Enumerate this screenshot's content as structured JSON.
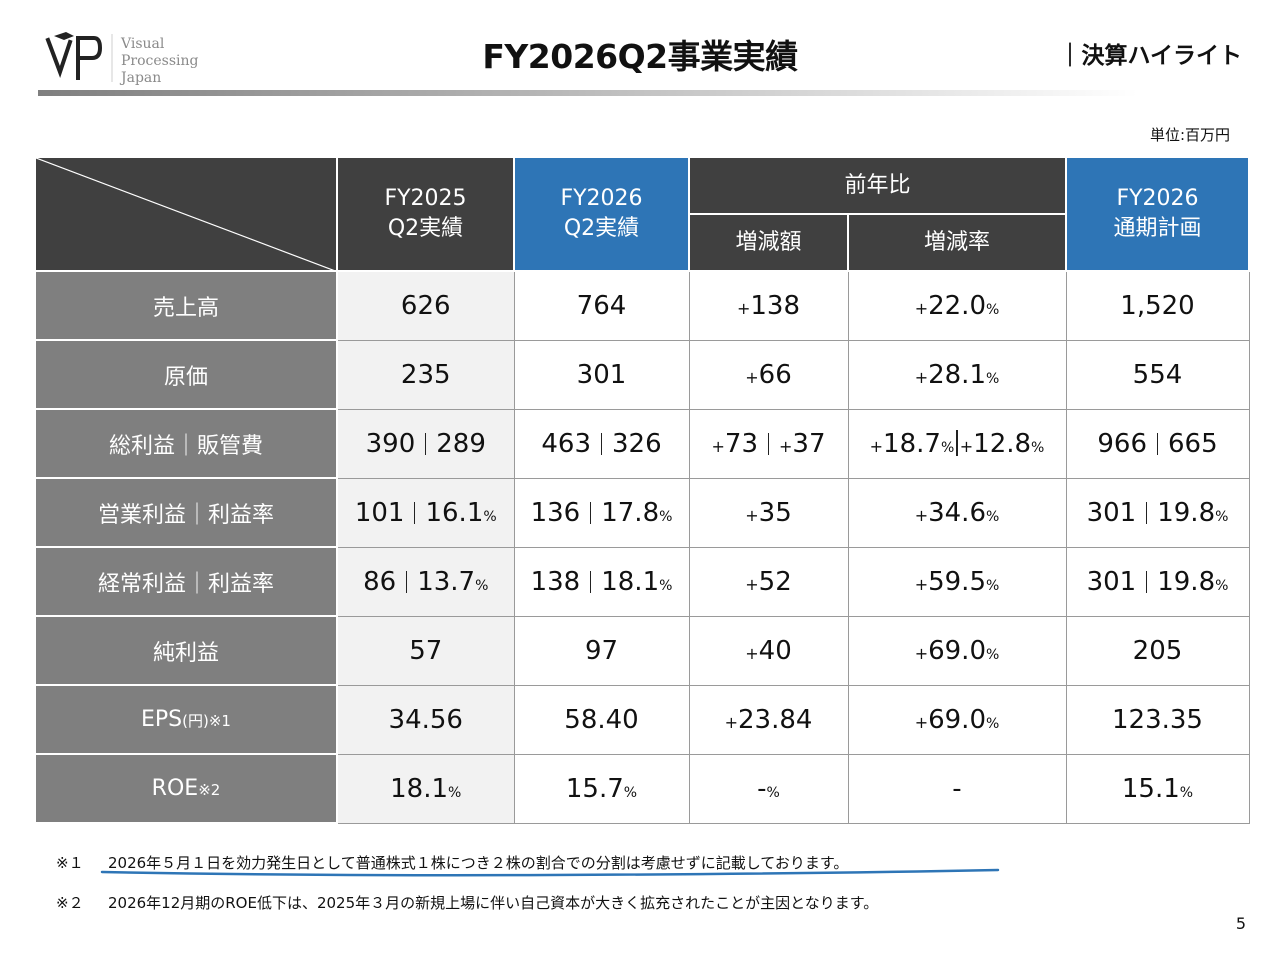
{
  "header": {
    "logo": {
      "mark": "VP",
      "lines": [
        "Visual",
        "Processing",
        "Japan"
      ]
    },
    "title": "FY2026Q2事業実績",
    "section": "｜決算ハイライト"
  },
  "unit": "単位:百万円",
  "table": {
    "columns": {
      "fy2025": "FY2025\nQ2実績",
      "fy2026": "FY2026\nQ2実績",
      "yoy": "前年比",
      "yoy_amount": "増減額",
      "yoy_rate": "増減率",
      "plan": "FY2026\n通期計画"
    },
    "rows": [
      {
        "label": "売上高",
        "fy2025": "626",
        "fy2026": "764",
        "amt": "138",
        "rate": "22.0",
        "plan": "1,520"
      },
      {
        "label": "原価",
        "fy2025": "235",
        "fy2026": "301",
        "amt": "66",
        "rate": "28.1",
        "plan": "554"
      },
      {
        "label": "総利益｜販管費",
        "fy2025": [
          "390",
          "289"
        ],
        "fy2026": [
          "463",
          "326"
        ],
        "amt": [
          "73",
          "37"
        ],
        "rate": [
          "18.7",
          "12.8"
        ],
        "plan": [
          "966",
          "665"
        ]
      },
      {
        "label": "営業利益｜利益率",
        "fy2025": [
          "101",
          "16.1"
        ],
        "fy2026": [
          "136",
          "17.8"
        ],
        "amt": "35",
        "rate": "34.6",
        "plan": [
          "301",
          "19.8"
        ]
      },
      {
        "label": "経常利益｜利益率",
        "fy2025": [
          "86",
          "13.7"
        ],
        "fy2026": [
          "138",
          "18.1"
        ],
        "amt": "52",
        "rate": "59.5",
        "plan": [
          "301",
          "19.8"
        ]
      },
      {
        "label": "純利益",
        "fy2025": "57",
        "fy2026": "97",
        "amt": "40",
        "rate": "69.0",
        "plan": "205"
      },
      {
        "label": "EPS",
        "label_sub": "(円)※1",
        "fy2025": "34.56",
        "fy2026": "58.40",
        "amt": "23.84",
        "rate": "69.0",
        "plan": "123.35"
      },
      {
        "label": "ROE",
        "label_sub": "※2",
        "fy2025": "18.1",
        "fy2026": "15.7",
        "amt": "-",
        "rate": "-",
        "plan": "15.1"
      }
    ],
    "plus": "+",
    "percent": "%"
  },
  "notes": [
    {
      "mark": "※１",
      "text": "2026年５月１日を効力発生日として普通株式１株につき２株の割合での分割は考慮せずに記載しております。"
    },
    {
      "mark": "※２",
      "text": "2026年12月期のROE低下は、2025年３月の新規上場に伴い自己資本が大きく拡充されたことが主因となります。"
    }
  ],
  "page_number": "5",
  "colors": {
    "header_dark": "#404040",
    "header_blue": "#2e75b6",
    "row_head": "#7f7f7f",
    "light_cell": "#f2f2f2",
    "underline": "#2e75b6"
  }
}
